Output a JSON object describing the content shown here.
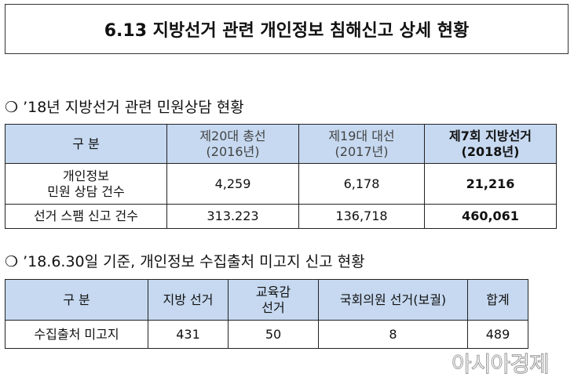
{
  "title": "6.13 지방선거 관련 개인정보 침해신고 상세 현황",
  "section1": {
    "heading": "❍ ’18년 지방선거 관련 민원상담 현황",
    "headers": [
      "구 분",
      "제20대 총선\n(2016년)",
      "제19대 대선\n(2017년)",
      "제7회 지방선거\n(2018년)"
    ],
    "rows": [
      {
        "label": "개인정보\n민원 상담 건수",
        "values": [
          "4,259",
          "6,178",
          "21,216"
        ]
      },
      {
        "label": "선거 스팸 신고 건수",
        "values": [
          "313.223",
          "136,718",
          "460,061"
        ]
      }
    ]
  },
  "section2": {
    "heading": "❍ ’18.6.30일 기준, 개인정보 수집출처 미고지 신고 현황",
    "headers": [
      "구 분",
      "지방 선거",
      "교육감\n선거",
      "국회의원 선거(보궐)",
      "합계"
    ],
    "rows": [
      {
        "label": "수집출처 미고지",
        "values": [
          "431",
          "50",
          "8",
          "489"
        ]
      }
    ]
  },
  "watermark": "아시아경제",
  "colors": {
    "header_fill": "#c6d9f0"
  }
}
